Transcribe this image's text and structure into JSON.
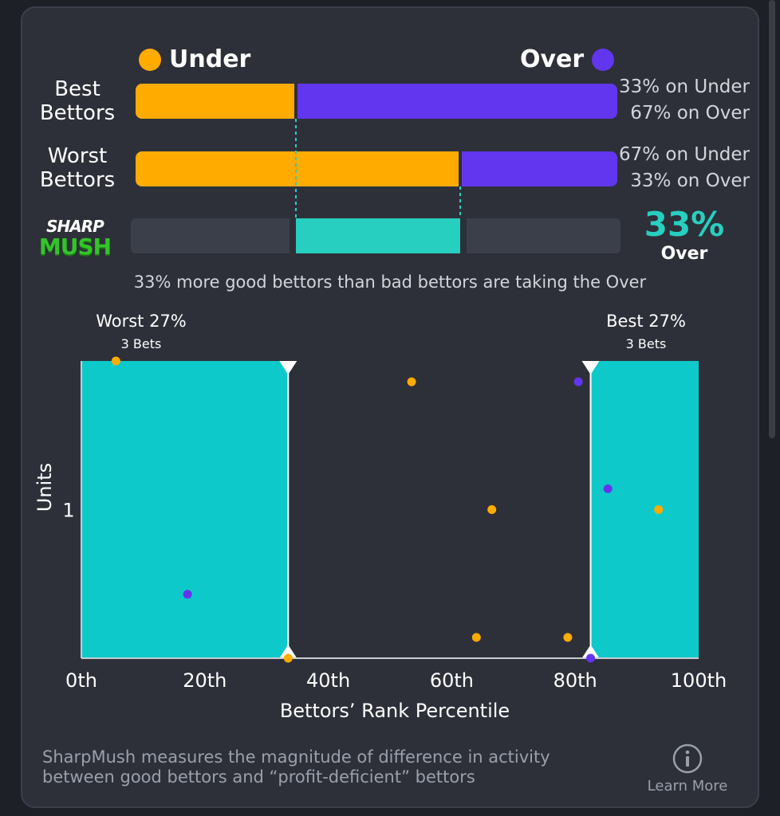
{
  "legend": {
    "under_label": "Under",
    "over_label": "Over",
    "under_color": "#ffab00",
    "over_color": "#6236ee"
  },
  "rows": [
    {
      "label_line1": "Best",
      "label_line2": "Bettors",
      "under_pct": 33,
      "over_pct": 67,
      "under_text": "33% on Under",
      "over_text": "67% on Over"
    },
    {
      "label_line1": "Worst",
      "label_line2": "Bettors",
      "under_pct": 67,
      "over_pct": 33,
      "under_text": "67% on Under",
      "over_text": "33% on Over"
    }
  ],
  "logo": {
    "line1": "SHARP",
    "line2": "MUSH"
  },
  "sharpmush": {
    "diff_pct": 33,
    "value_text": "33%",
    "side_text": "Over",
    "accent_color": "#27cfc0"
  },
  "caption": "33% more good bettors than bad bettors are taking the Over",
  "chart_data": {
    "type": "scatter",
    "xlabel": "Bettors’ Rank Percentile",
    "ylabel": "Units",
    "xlim": [
      0,
      100
    ],
    "xticks": [
      0,
      20,
      40,
      60,
      80,
      100
    ],
    "xtick_labels": [
      "0th",
      "20th",
      "40th",
      "60th",
      "80th",
      "100th"
    ],
    "ylim": [
      0,
      2
    ],
    "yticks": [
      1
    ],
    "ytick_labels": [
      "1"
    ],
    "regions": [
      {
        "name": "Worst 27%",
        "title": "Worst 27%",
        "subtitle": "3 Bets",
        "x_start": 0,
        "x_end": 33.5
      },
      {
        "name": "Best 27%",
        "title": "Best 27%",
        "subtitle": "3 Bets",
        "x_start": 82.5,
        "x_end": 100
      }
    ],
    "series": [
      {
        "name": "Under",
        "color": "#ffab00",
        "points": [
          {
            "x": 5.6,
            "y": 2.0
          },
          {
            "x": 53.5,
            "y": 1.86
          },
          {
            "x": 66.5,
            "y": 1.0
          },
          {
            "x": 64.0,
            "y": 0.14
          },
          {
            "x": 78.8,
            "y": 0.14
          },
          {
            "x": 93.5,
            "y": 1.0
          },
          {
            "x": 33.5,
            "y": 0.0
          }
        ]
      },
      {
        "name": "Over",
        "color": "#6236ee",
        "points": [
          {
            "x": 17.2,
            "y": 0.43
          },
          {
            "x": 80.5,
            "y": 1.86
          },
          {
            "x": 85.3,
            "y": 1.14
          },
          {
            "x": 82.5,
            "y": 0.0
          }
        ]
      }
    ]
  },
  "footer": {
    "line1": "SharpMush measures the magnitude of difference in activity",
    "line2": "between good bettors and “profit-deficient” bettors",
    "info_icon": "info-icon",
    "learn_more": "Learn More"
  }
}
